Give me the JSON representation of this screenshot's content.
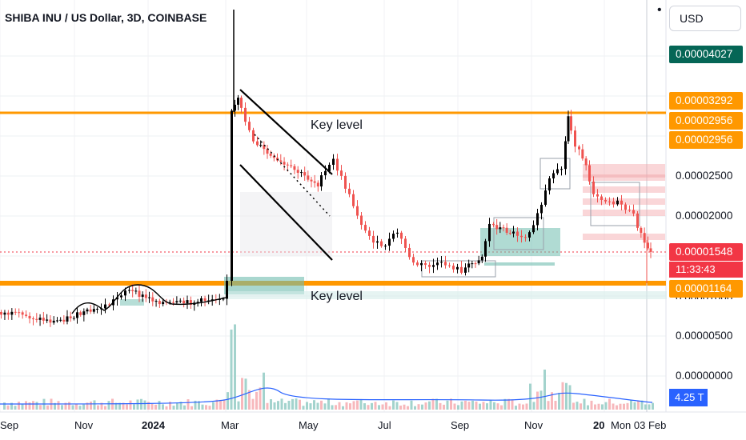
{
  "header": {
    "title": "SHIBA INU / US Dollar, 3D, COINBASE",
    "currency": "USD"
  },
  "colors": {
    "up": "#000000",
    "down": "#ef5350",
    "key_level": "#ff9800",
    "zone": "#6fbdaf",
    "supply": "#f4a3a9",
    "volume_ma": "#2962ff"
  },
  "annotations": {
    "key_level_top": "Key level",
    "key_level_bottom": "Key level"
  },
  "price_axis": {
    "labels": [
      "0.00002500",
      "0.00002000",
      "0.00000500",
      "0.00000000"
    ],
    "partial_labels": [
      "0.00001000"
    ]
  },
  "price_tags": [
    {
      "text": "0.00004027",
      "color": "#056656"
    },
    {
      "text": "0.00003292",
      "color": "#ff9800"
    },
    {
      "text": "0.00002956",
      "color": "#ff9800"
    },
    {
      "text": "0.00002956",
      "color": "#ff9800"
    },
    {
      "text": "0.00001548",
      "color": "#ffffff"
    },
    {
      "text": "0.00001164",
      "color": "#ff9800"
    }
  ],
  "timer": "11:33:43",
  "volume_tag": "4.25 T",
  "x_axis": {
    "labels": [
      "Sep",
      "Nov",
      "2024",
      "Mar",
      "May",
      "Jul",
      "Sep",
      "Nov",
      "20",
      "Mon 03 Feb"
    ]
  },
  "chart_data": {
    "type": "candlestick",
    "title": "SHIBA INU / US Dollar, 3D, COINBASE",
    "timeframe": "3D",
    "currency": "USD",
    "key_levels": [
      3.292e-05,
      1.164e-05
    ],
    "last_price": 1.548e-05,
    "price_path": [
      [
        "2023-09",
        7.5e-06
      ],
      [
        "2023-10",
        7e-06
      ],
      [
        "2023-11",
        7.8e-06
      ],
      [
        "2023-12",
        1.1e-05
      ],
      [
        "2024-01",
        9.8e-06
      ],
      [
        "2024-02",
        1.03e-05
      ],
      [
        "2024-03",
        3.4e-05
      ],
      [
        "2024-04",
        2.7e-05
      ],
      [
        "2024-05",
        2.6e-05
      ],
      [
        "2024-06",
        2.05e-05
      ],
      [
        "2024-07",
        1.75e-05
      ],
      [
        "2024-08",
        1.45e-05
      ],
      [
        "2024-09",
        1.4e-05
      ],
      [
        "2024-10",
        1.8e-05
      ],
      [
        "2024-11",
        2.4e-05
      ],
      [
        "2024-12",
        3e-05
      ],
      [
        "2025-01",
        2.2e-05
      ],
      [
        "2025-02",
        1.55e-05
      ]
    ]
  }
}
